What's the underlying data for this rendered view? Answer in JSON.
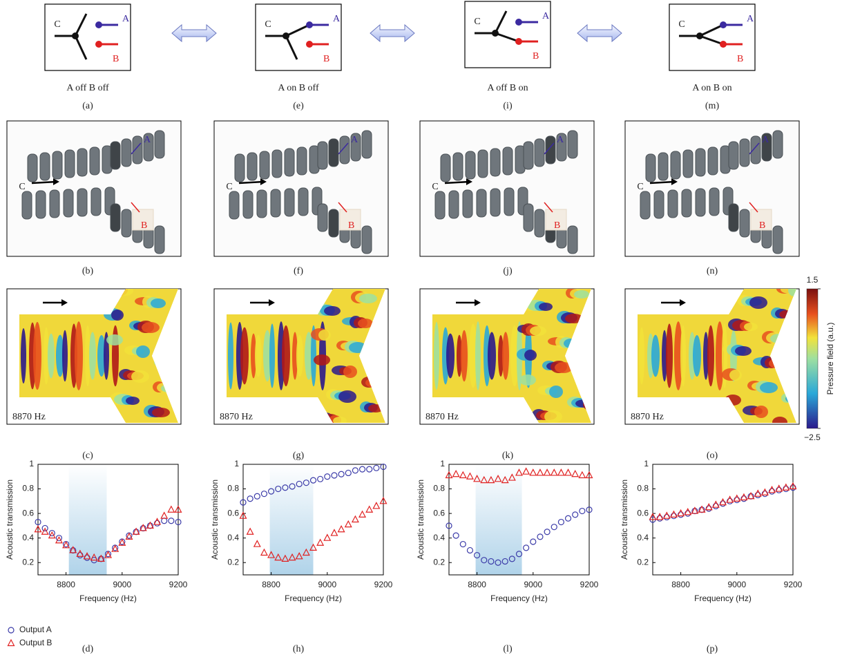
{
  "schematics": [
    {
      "state": "A off B off",
      "panel": "(a)",
      "ports": [
        "C",
        "A",
        "B"
      ]
    },
    {
      "state": "A on B off",
      "panel": "(e)",
      "ports": [
        "C",
        "A",
        "B"
      ]
    },
    {
      "state": "A off B on",
      "panel": "(i)",
      "ports": [
        "C",
        "A",
        "B"
      ]
    },
    {
      "state": "A on B on",
      "panel": "(m)",
      "ports": [
        "C",
        "A",
        "B"
      ]
    }
  ],
  "photos": [
    {
      "panel": "(b)",
      "ports": [
        "C",
        "A",
        "B"
      ]
    },
    {
      "panel": "(f)",
      "ports": [
        "C",
        "A",
        "B"
      ]
    },
    {
      "panel": "(j)",
      "ports": [
        "C",
        "A",
        "B"
      ]
    },
    {
      "panel": "(n)",
      "ports": [
        "C",
        "A",
        "B"
      ]
    }
  ],
  "field_maps": [
    {
      "panel": "(c)",
      "frequency": "8870 Hz"
    },
    {
      "panel": "(g)",
      "frequency": "8870 Hz"
    },
    {
      "panel": "(k)",
      "frequency": "8870 Hz"
    },
    {
      "panel": "(o)",
      "frequency": "8870 Hz"
    }
  ],
  "colorbar": {
    "title": "Pressure field (a.u.)",
    "clim": [
      -2.5,
      1.5
    ],
    "ticks": [
      1.5,
      {
        "value": -2.5,
        "label": "−2.5"
      }
    ]
  },
  "chart_data": [
    {
      "type": "scatter",
      "panel": "(d)",
      "x_label": "Frequency (Hz)",
      "y_label": "Acoustic transmission",
      "x": [
        8700,
        8725,
        8750,
        8775,
        8800,
        8825,
        8850,
        8875,
        8900,
        8925,
        8950,
        8975,
        9000,
        9025,
        9050,
        9075,
        9100,
        9125,
        9150,
        9175,
        9200
      ],
      "xlim": [
        8700,
        9200
      ],
      "xticks": [
        8800,
        9000,
        9200
      ],
      "ylim": [
        0.1,
        1.0
      ],
      "yticks": [
        0.2,
        0.4,
        0.6,
        0.8,
        1.0
      ],
      "band": [
        8810,
        8945
      ],
      "legend": "bottom-left",
      "series": [
        {
          "name": "Output A",
          "color": "#3b3ba8",
          "marker": "circle",
          "values": [
            0.53,
            0.48,
            0.44,
            0.4,
            0.35,
            0.3,
            0.26,
            0.24,
            0.22,
            0.23,
            0.27,
            0.32,
            0.37,
            0.42,
            0.45,
            0.48,
            0.5,
            0.52,
            0.54,
            0.54,
            0.53
          ]
        },
        {
          "name": "Output B",
          "color": "#e02020",
          "marker": "triangle",
          "values": [
            0.47,
            0.45,
            0.42,
            0.38,
            0.34,
            0.3,
            0.27,
            0.25,
            0.24,
            0.23,
            0.26,
            0.31,
            0.36,
            0.41,
            0.45,
            0.48,
            0.5,
            0.53,
            0.58,
            0.63,
            0.63
          ]
        }
      ]
    },
    {
      "type": "scatter",
      "panel": "(h)",
      "x_label": "Frequency (Hz)",
      "y_label": "Acoustic transmission",
      "x": [
        8700,
        8725,
        8750,
        8775,
        8800,
        8825,
        8850,
        8875,
        8900,
        8925,
        8950,
        8975,
        9000,
        9025,
        9050,
        9075,
        9100,
        9125,
        9150,
        9175,
        9200
      ],
      "xlim": [
        8700,
        9200
      ],
      "xticks": [
        8800,
        9000,
        9200
      ],
      "ylim": [
        0.1,
        1.0
      ],
      "yticks": [
        0.2,
        0.4,
        0.6,
        0.8,
        1.0
      ],
      "band": [
        8795,
        8950
      ],
      "series": [
        {
          "color": "#3b3ba8",
          "marker": "circle",
          "values": [
            0.69,
            0.72,
            0.74,
            0.76,
            0.78,
            0.8,
            0.81,
            0.82,
            0.84,
            0.85,
            0.87,
            0.88,
            0.9,
            0.91,
            0.92,
            0.93,
            0.95,
            0.96,
            0.96,
            0.97,
            0.98
          ]
        },
        {
          "color": "#e02020",
          "marker": "triangle",
          "values": [
            0.58,
            0.45,
            0.35,
            0.28,
            0.26,
            0.24,
            0.23,
            0.24,
            0.25,
            0.28,
            0.32,
            0.36,
            0.4,
            0.44,
            0.47,
            0.51,
            0.55,
            0.59,
            0.63,
            0.66,
            0.7
          ]
        }
      ]
    },
    {
      "type": "scatter",
      "panel": "(l)",
      "x_label": "Frequency (Hz)",
      "y_label": "Acoustic transmission",
      "x": [
        8700,
        8725,
        8750,
        8775,
        8800,
        8825,
        8850,
        8875,
        8900,
        8925,
        8950,
        8975,
        9000,
        9025,
        9050,
        9075,
        9100,
        9125,
        9150,
        9175,
        9200
      ],
      "xlim": [
        8700,
        9200
      ],
      "xticks": [
        8800,
        9000,
        9200
      ],
      "ylim": [
        0.1,
        1.0
      ],
      "yticks": [
        0.2,
        0.4,
        0.6,
        0.8,
        1.0
      ],
      "band": [
        8795,
        8960
      ],
      "series": [
        {
          "color": "#3b3ba8",
          "marker": "circle",
          "values": [
            0.5,
            0.42,
            0.35,
            0.3,
            0.26,
            0.22,
            0.21,
            0.2,
            0.21,
            0.23,
            0.27,
            0.32,
            0.37,
            0.41,
            0.45,
            0.49,
            0.53,
            0.56,
            0.59,
            0.62,
            0.63
          ]
        },
        {
          "color": "#e02020",
          "marker": "triangle",
          "values": [
            0.91,
            0.92,
            0.91,
            0.9,
            0.88,
            0.87,
            0.87,
            0.88,
            0.87,
            0.89,
            0.93,
            0.94,
            0.93,
            0.93,
            0.93,
            0.93,
            0.93,
            0.93,
            0.92,
            0.91,
            0.91
          ]
        }
      ]
    },
    {
      "type": "scatter",
      "panel": "(p)",
      "x_label": "Frequency (Hz)",
      "y_label": "Acoustic transmission",
      "x": [
        8700,
        8725,
        8750,
        8775,
        8800,
        8825,
        8850,
        8875,
        8900,
        8925,
        8950,
        8975,
        9000,
        9025,
        9050,
        9075,
        9100,
        9125,
        9150,
        9175,
        9200
      ],
      "xlim": [
        8700,
        9200
      ],
      "xticks": [
        8800,
        9000,
        9200
      ],
      "ylim": [
        0.1,
        1.0
      ],
      "yticks": [
        0.2,
        0.4,
        0.6,
        0.8,
        1.0
      ],
      "series": [
        {
          "color": "#3b3ba8",
          "marker": "circle",
          "values": [
            0.55,
            0.56,
            0.57,
            0.58,
            0.59,
            0.6,
            0.62,
            0.63,
            0.64,
            0.66,
            0.68,
            0.7,
            0.71,
            0.72,
            0.74,
            0.75,
            0.76,
            0.78,
            0.79,
            0.8,
            0.81
          ]
        },
        {
          "color": "#e02020",
          "marker": "triangle",
          "values": [
            0.57,
            0.57,
            0.58,
            0.59,
            0.6,
            0.61,
            0.62,
            0.63,
            0.65,
            0.67,
            0.69,
            0.71,
            0.72,
            0.73,
            0.74,
            0.76,
            0.77,
            0.79,
            0.8,
            0.81,
            0.82
          ]
        }
      ]
    }
  ]
}
